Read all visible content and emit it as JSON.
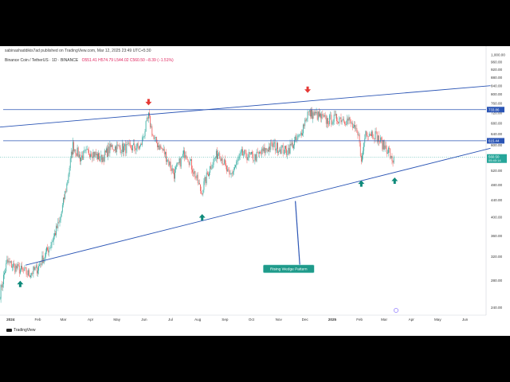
{
  "header": {
    "published": "sabinashaddikis7ad published on TradingView.com, Mar 12, 2025 23:49 UTC+5:30",
    "symbol": "Binance Coin / TetherUS · 1D · BINANCE",
    "ohlc": "O551.41 H574.79 L544.02 C560.50 −8.39 (−1.51%)"
  },
  "footer": {
    "logo": "TradingView"
  },
  "colors": {
    "up": "#26a69a",
    "down": "#ef5350",
    "trendline": "#2b55b5",
    "level_line": "#2b55b5",
    "arrow_down": "#e53935",
    "arrow_up": "#0e8a7a",
    "annotation_bg": "#1e9a8a"
  },
  "chart_data": {
    "type": "candlestick",
    "y_axis": {
      "scale": "log",
      "range": [
        230,
        1050
      ],
      "ticks": [
        "1,000.00",
        "960.00",
        "920.00",
        "880.00",
        "840.00",
        "800.00",
        "760.00",
        "720.00",
        "680.00",
        "640.00",
        "600.00",
        "560.00",
        "520.00",
        "480.00",
        "440.00",
        "400.00",
        "360.00",
        "320.00",
        "280.00",
        "240.00",
        "220.00"
      ],
      "tick_values": [
        1000,
        960,
        920,
        880,
        840,
        800,
        760,
        720,
        680,
        640,
        600,
        560,
        520,
        480,
        440,
        400,
        360,
        320,
        280,
        240,
        220
      ]
    },
    "x_axis": {
      "start": "2023-12-20",
      "end": "2025-06-25",
      "labels": [
        {
          "date": "2024-01-01",
          "text": "2024"
        },
        {
          "date": "2024-02-01",
          "text": "Feb"
        },
        {
          "date": "2024-03-01",
          "text": "Mar"
        },
        {
          "date": "2024-04-01",
          "text": "Apr"
        },
        {
          "date": "2024-05-01",
          "text": "May"
        },
        {
          "date": "2024-06-01",
          "text": "Jun"
        },
        {
          "date": "2024-07-01",
          "text": "Jul"
        },
        {
          "date": "2024-08-01",
          "text": "Aug"
        },
        {
          "date": "2024-09-01",
          "text": "Sep"
        },
        {
          "date": "2024-10-01",
          "text": "Oct"
        },
        {
          "date": "2024-11-01",
          "text": "Nov"
        },
        {
          "date": "2024-12-01",
          "text": "Dec"
        },
        {
          "date": "2025-01-01",
          "text": "2025"
        },
        {
          "date": "2025-02-01",
          "text": "Feb"
        },
        {
          "date": "2025-03-01",
          "text": "Mar"
        },
        {
          "date": "2025-04-01",
          "text": "Apr"
        },
        {
          "date": "2025-05-01",
          "text": "May"
        },
        {
          "date": "2025-06-01",
          "text": "Jun"
        }
      ]
    },
    "price_anchors": [
      {
        "date": "2023-12-20",
        "price": 260
      },
      {
        "date": "2023-12-28",
        "price": 310
      },
      {
        "date": "2024-01-08",
        "price": 300
      },
      {
        "date": "2024-01-22",
        "price": 290
      },
      {
        "date": "2024-02-01",
        "price": 300
      },
      {
        "date": "2024-02-15",
        "price": 340
      },
      {
        "date": "2024-02-26",
        "price": 390
      },
      {
        "date": "2024-03-05",
        "price": 480
      },
      {
        "date": "2024-03-12",
        "price": 600
      },
      {
        "date": "2024-03-20",
        "price": 560
      },
      {
        "date": "2024-04-01",
        "price": 580
      },
      {
        "date": "2024-04-13",
        "price": 555
      },
      {
        "date": "2024-04-25",
        "price": 595
      },
      {
        "date": "2024-05-10",
        "price": 590
      },
      {
        "date": "2024-05-28",
        "price": 595
      },
      {
        "date": "2024-06-06",
        "price": 705
      },
      {
        "date": "2024-06-12",
        "price": 620
      },
      {
        "date": "2024-06-24",
        "price": 575
      },
      {
        "date": "2024-07-05",
        "price": 510
      },
      {
        "date": "2024-07-18",
        "price": 580
      },
      {
        "date": "2024-08-05",
        "price": 460
      },
      {
        "date": "2024-08-15",
        "price": 530
      },
      {
        "date": "2024-08-25",
        "price": 580
      },
      {
        "date": "2024-09-06",
        "price": 500
      },
      {
        "date": "2024-09-20",
        "price": 570
      },
      {
        "date": "2024-10-05",
        "price": 560
      },
      {
        "date": "2024-10-25",
        "price": 600
      },
      {
        "date": "2024-11-10",
        "price": 580
      },
      {
        "date": "2024-11-25",
        "price": 630
      },
      {
        "date": "2024-12-04",
        "price": 720
      },
      {
        "date": "2024-12-15",
        "price": 710
      },
      {
        "date": "2024-12-25",
        "price": 690
      },
      {
        "date": "2025-01-10",
        "price": 700
      },
      {
        "date": "2025-01-20",
        "price": 690
      },
      {
        "date": "2025-02-01",
        "price": 620
      },
      {
        "date": "2025-02-03",
        "price": 540
      },
      {
        "date": "2025-02-08",
        "price": 650
      },
      {
        "date": "2025-02-18",
        "price": 640
      },
      {
        "date": "2025-02-28",
        "price": 600
      },
      {
        "date": "2025-03-07",
        "price": 580
      },
      {
        "date": "2025-03-10",
        "price": 540
      },
      {
        "date": "2025-03-12",
        "price": 560
      }
    ],
    "horizontal_levels": [
      {
        "price": 733.86,
        "label": "733.86"
      },
      {
        "price": 615.44,
        "label": "615.44"
      },
      {
        "price": 560.5,
        "label": "560.50",
        "sublabel": "05:40:14",
        "style": "dotted"
      }
    ],
    "trendlines": [
      {
        "from": {
          "date": "2023-12-20",
          "price": 665
        },
        "to": {
          "date": "2025-06-30",
          "price": 840
        }
      },
      {
        "from": {
          "date": "2024-01-18",
          "price": 305
        },
        "to": {
          "date": "2025-06-30",
          "price": 590
        }
      }
    ],
    "markers": [
      {
        "type": "arrow-down",
        "date": "2024-06-06",
        "price": 755
      },
      {
        "type": "arrow-down",
        "date": "2024-12-04",
        "price": 810
      },
      {
        "type": "arrow-up",
        "date": "2024-01-12",
        "price": 278
      },
      {
        "type": "arrow-up",
        "date": "2024-08-06",
        "price": 405
      },
      {
        "type": "arrow-up",
        "date": "2025-02-03",
        "price": 490
      },
      {
        "type": "arrow-up",
        "date": "2025-03-13",
        "price": 498
      }
    ],
    "annotations": [
      {
        "text": "Rising Wedge Pattern",
        "date": "2024-11-07",
        "price": 300,
        "pointer": {
          "date": "2024-11-20",
          "price": 438
        }
      }
    ]
  }
}
